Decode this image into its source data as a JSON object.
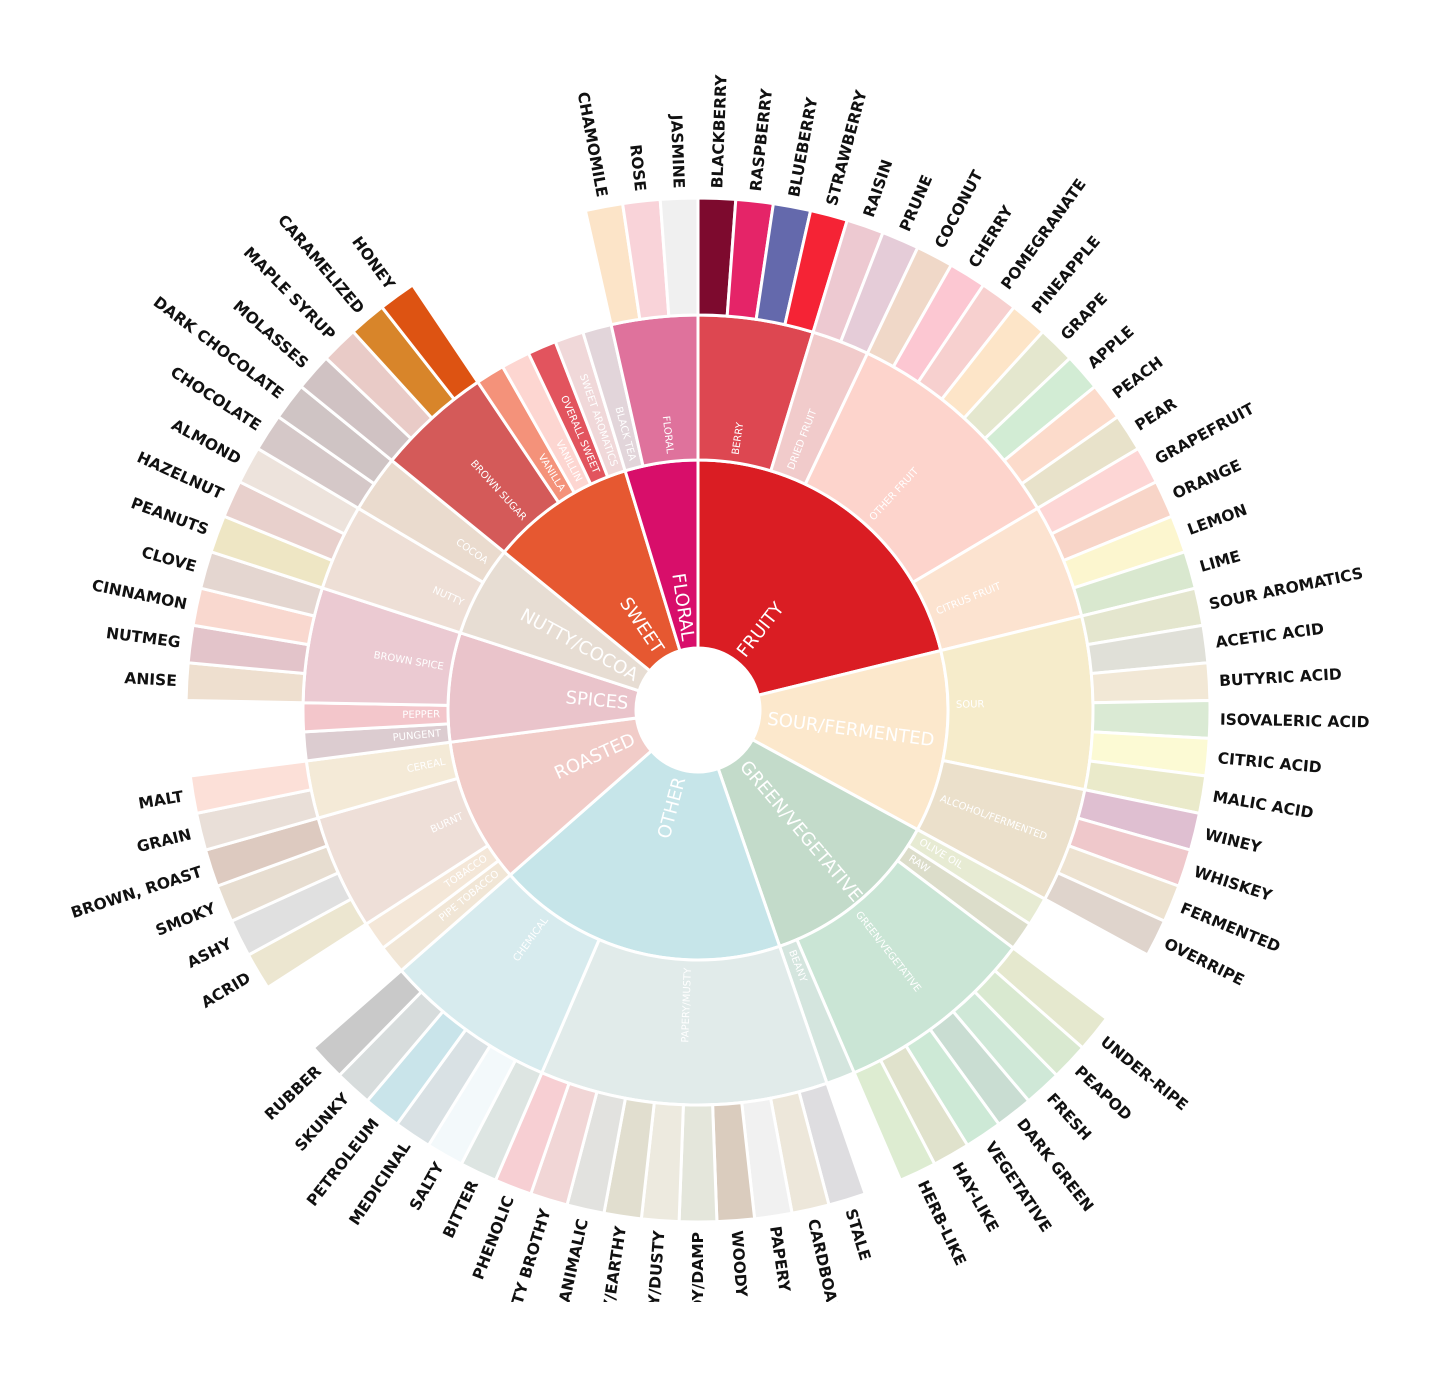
{
  "chart_data": {
    "type": "sunburst",
    "title": "",
    "levels": 3,
    "categories": [
      {
        "name": "FRUITY",
        "color": "#DA1D23",
        "children": [
          {
            "name": "BERRY",
            "color": "#DD4751",
            "children": [
              {
                "name": "BLACKBERRY",
                "color": "#7D0A2E"
              },
              {
                "name": "RASPBERRY",
                "color": "#E52468"
              },
              {
                "name": "BLUEBERRY",
                "color": "#6469AC"
              },
              {
                "name": "STRAWBERRY",
                "color": "#F52335"
              }
            ]
          },
          {
            "name": "DRIED FRUIT",
            "color": "#F1CBCB",
            "children": [
              {
                "name": "RAISIN",
                "color": "#EDC9D1"
              },
              {
                "name": "PRUNE",
                "color": "#E5CCD8"
              }
            ]
          },
          {
            "name": "OTHER FRUIT",
            "color": "#FDD4CC",
            "children": [
              {
                "name": "COCONUT",
                "color": "#F0D8C8"
              },
              {
                "name": "CHERRY",
                "color": "#FCC7D2"
              },
              {
                "name": "POMEGRANATE",
                "color": "#F7D0CF"
              },
              {
                "name": "PINEAPPLE",
                "color": "#FDE5C8"
              },
              {
                "name": "GRAPE",
                "color": "#E4E7CE"
              },
              {
                "name": "APPLE",
                "color": "#D2ECD4"
              },
              {
                "name": "PEACH",
                "color": "#FCDBCB"
              },
              {
                "name": "PEAR",
                "color": "#E8E2CA"
              }
            ]
          },
          {
            "name": "CITRUS FRUIT",
            "color": "#FCE3D0",
            "children": [
              {
                "name": "GRAPEFRUIT",
                "color": "#FDD6D5"
              },
              {
                "name": "ORANGE",
                "color": "#F8D5C8"
              },
              {
                "name": "LEMON",
                "color": "#FCF6CF"
              },
              {
                "name": "LIME",
                "color": "#D9E8CF"
              }
            ]
          }
        ]
      },
      {
        "name": "SOUR/FERMENTED",
        "color": "#FCE8CC",
        "children": [
          {
            "name": "SOUR",
            "color": "#F6ECCB",
            "children": [
              {
                "name": "SOUR AROMATICS",
                "color": "#E4E6CE"
              },
              {
                "name": "ACETIC ACID",
                "color": "#E0E0D8"
              },
              {
                "name": "BUTYRIC ACID",
                "color": "#F2E8D6"
              },
              {
                "name": "ISOVALERIC ACID",
                "color": "#DAEAD4"
              },
              {
                "name": "CITRIC ACID",
                "color": "#FCFAD4"
              },
              {
                "name": "MALIC ACID",
                "color": "#EAEACA"
              }
            ]
          },
          {
            "name": "ALCOHOL/FERMENTED",
            "color": "#EBE0CB",
            "children": [
              {
                "name": "WINEY",
                "color": "#DFBFD1"
              },
              {
                "name": "WHISKEY",
                "color": "#EFC8CB"
              },
              {
                "name": "FERMENTED",
                "color": "#EDE2D0"
              },
              {
                "name": "OVERRIPE",
                "color": "#DFD4CC"
              }
            ]
          }
        ]
      },
      {
        "name": "GREEN/VEGETATIVE",
        "color": "#C3DBCA",
        "children": [
          {
            "name": "OLIVE OIL",
            "color": "#E7EBD3"
          },
          {
            "name": "RAW",
            "color": "#DCDDCA"
          },
          {
            "name": "GREEN/VEGETATIVE",
            "color": "#CAE5D5",
            "children": [
              {
                "name": "UNDER-RIPE",
                "color": "#E5E8CE"
              },
              {
                "name": "PEAPOD",
                "color": "#D9E9D0"
              },
              {
                "name": "FRESH",
                "color": "#CFE8D7"
              },
              {
                "name": "DARK GREEN",
                "color": "#C9DDD2"
              },
              {
                "name": "VEGETATIVE",
                "color": "#CDE9D6"
              },
              {
                "name": "HAY-LIKE",
                "color": "#E0E2CC"
              },
              {
                "name": "HERB-LIKE",
                "color": "#DDECD1"
              }
            ]
          },
          {
            "name": "BEANY",
            "color": "#D4E5DE"
          }
        ]
      },
      {
        "name": "OTHER",
        "color": "#C6E5E9",
        "children": [
          {
            "name": "PAPERY/MUSTY",
            "color": "#E1EBEA",
            "children": [
              {
                "name": "STALE",
                "color": "#DEDDE0"
              },
              {
                "name": "CARDBOARD",
                "color": "#EDE7DA"
              },
              {
                "name": "PAPERY",
                "color": "#F1F1F1"
              },
              {
                "name": "WOODY",
                "color": "#DACCBE"
              },
              {
                "name": "MOLDY/DAMP",
                "color": "#E4E6DB"
              },
              {
                "name": "MUSTY/DUSTY",
                "color": "#EDEADF"
              },
              {
                "name": "MUSTY/EARTHY",
                "color": "#E1DECF"
              },
              {
                "name": "ANIMALIC",
                "color": "#E2E2DF"
              },
              {
                "name": "MEATY BROTHY",
                "color": "#F1D6D6"
              },
              {
                "name": "PHENOLIC",
                "color": "#F7CFD3"
              }
            ]
          },
          {
            "name": "CHEMICAL",
            "color": "#D7EBEE",
            "children": [
              {
                "name": "BITTER",
                "color": "#DDE5E2"
              },
              {
                "name": "SALTY",
                "color": "#F3F9FB"
              },
              {
                "name": "MEDICINAL",
                "color": "#D9E1E4"
              },
              {
                "name": "PETROLEUM",
                "color": "#C9E4EA"
              },
              {
                "name": "SKUNKY",
                "color": "#D7DCDC"
              },
              {
                "name": "RUBBER",
                "color": "#C9C9C9"
              }
            ]
          }
        ]
      },
      {
        "name": "ROASTED",
        "color": "#F1CCC8",
        "children": [
          {
            "name": "PIPE TOBACCO",
            "color": "#F1E6D6"
          },
          {
            "name": "TOBACCO",
            "color": "#F4E7D8"
          },
          {
            "name": "BURNT",
            "color": "#EEDFD8",
            "children": [
              {
                "name": "ACRID",
                "color": "#ECE6D0"
              },
              {
                "name": "ASHY",
                "color": "#E0E0E0"
              },
              {
                "name": "SMOKY",
                "color": "#E7DDD0"
              },
              {
                "name": "BROWN, ROAST",
                "color": "#DDCAC0"
              }
            ]
          },
          {
            "name": "CEREAL",
            "color": "#F4EAD7",
            "children": [
              {
                "name": "GRAIN",
                "color": "#E9DFD8"
              },
              {
                "name": "MALT",
                "color": "#FCE0D8"
              }
            ]
          }
        ]
      },
      {
        "name": "SPICES",
        "color": "#EAC4CB",
        "children": [
          {
            "name": "PUNGENT",
            "color": "#DCCCD0"
          },
          {
            "name": "PEPPER",
            "color": "#F3C6CB"
          },
          {
            "name": "BROWN SPICE",
            "color": "#EBCAD2",
            "children": [
              {
                "name": "ANISE",
                "color": "#EEDFCF"
              },
              {
                "name": "NUTMEG",
                "color": "#E3C4CA"
              },
              {
                "name": "CINNAMON",
                "color": "#F9D8CF"
              },
              {
                "name": "CLOVE",
                "color": "#E4D6D0"
              }
            ]
          }
        ]
      },
      {
        "name": "NUTTY/COCOA",
        "color": "#E7DDD3",
        "children": [
          {
            "name": "NUTTY",
            "color": "#EEDFD6",
            "children": [
              {
                "name": "PEANUTS",
                "color": "#EEE6C4"
              },
              {
                "name": "HAZELNUT",
                "color": "#E8D0CC"
              },
              {
                "name": "ALMOND",
                "color": "#EDE3DC"
              }
            ]
          },
          {
            "name": "COCOA",
            "color": "#EADBCE",
            "children": [
              {
                "name": "CHOCOLATE",
                "color": "#D5C8C8"
              },
              {
                "name": "DARK CHOCOLATE",
                "color": "#CFC4C4"
              }
            ]
          }
        ]
      },
      {
        "name": "SWEET",
        "color": "#E65831",
        "children": [
          {
            "name": "BROWN SUGAR",
            "color": "#D45A59",
            "children": [
              {
                "name": "MOLASSES",
                "color": "#D0C2C3"
              },
              {
                "name": "MAPLE SYRUP",
                "color": "#E9CBC7"
              },
              {
                "name": "CARAMELIZED",
                "color": "#D8852A"
              },
              {
                "name": "HONEY",
                "color": "#DD5312"
              }
            ]
          },
          {
            "name": "VANILLA",
            "color": "#F4927A"
          },
          {
            "name": "VANILLIN",
            "color": "#FDD6D1"
          },
          {
            "name": "OVERALL SWEET",
            "color": "#E2545E"
          },
          {
            "name": "SWEET AROMATICS",
            "color": "#F0D8D9"
          }
        ]
      },
      {
        "name": "FLORAL",
        "color": "#D80E6A",
        "children": [
          {
            "name": "BLACK TEA",
            "color": "#E2D5DA"
          },
          {
            "name": "FLORAL",
            "color": "#DF729C",
            "children": [
              {
                "name": "CHAMOMILE",
                "color": "#FCE4C8"
              },
              {
                "name": "ROSE",
                "color": "#F9D3D9"
              },
              {
                "name": "JASMINE",
                "color": "#F0F0F0"
              }
            ]
          }
        ]
      }
    ]
  }
}
